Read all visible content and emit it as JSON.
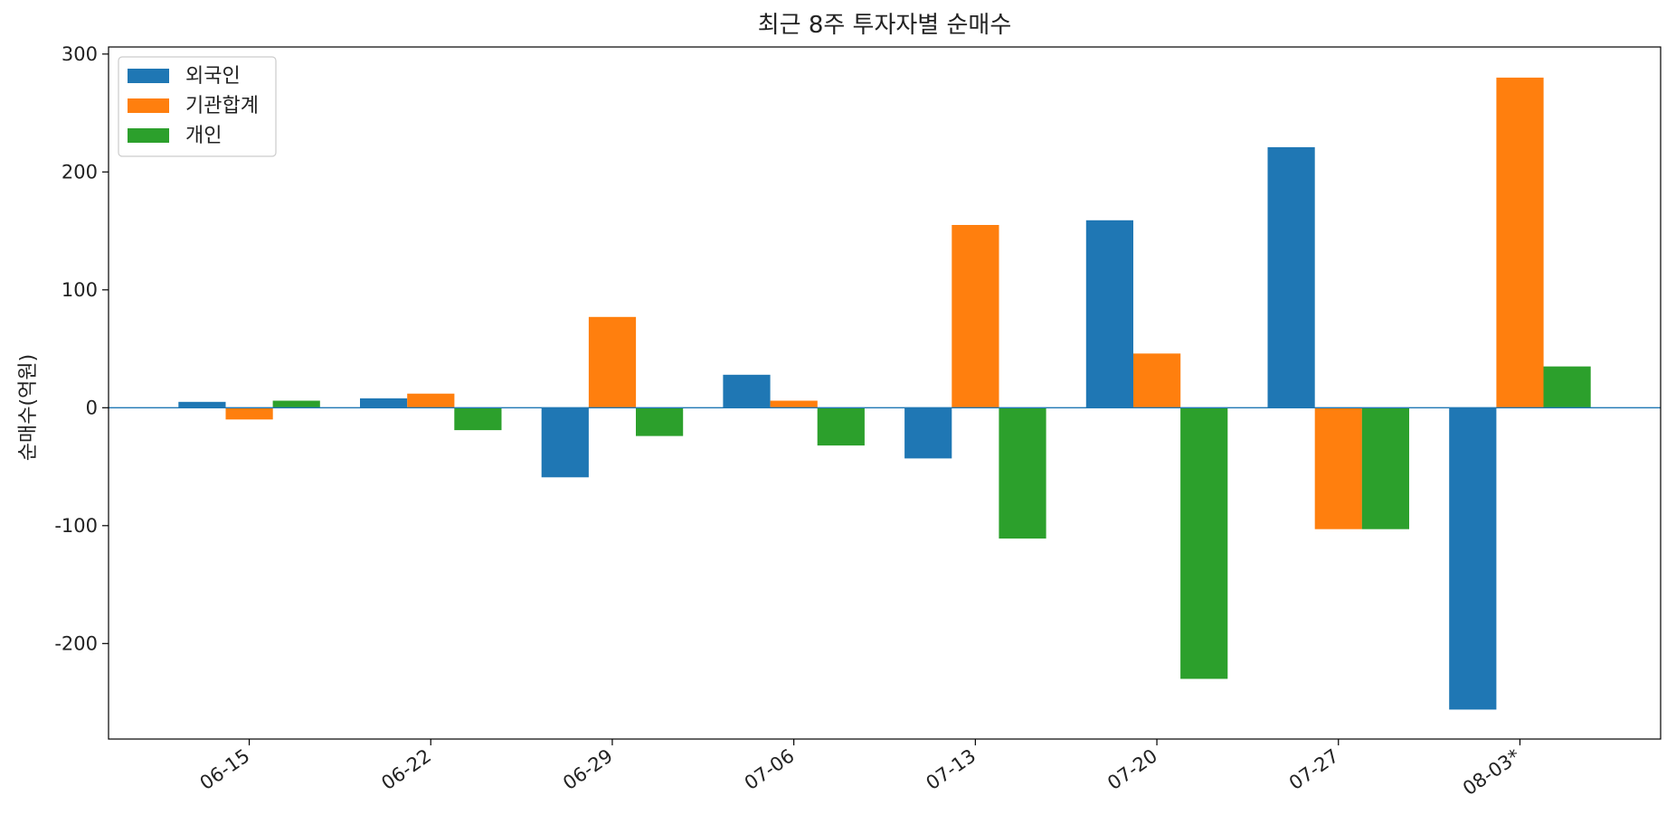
{
  "chart_data": {
    "type": "bar",
    "title": "최근 8주 투자자별 순매수",
    "xlabel": "",
    "ylabel": "순매수(억원)",
    "categories": [
      "06-15",
      "06-22",
      "06-29",
      "07-06",
      "07-13",
      "07-20",
      "07-27",
      "08-03*"
    ],
    "series": [
      {
        "name": "외국인",
        "color": "#1f77b4",
        "values": [
          5,
          8,
          -59,
          28,
          -43,
          159,
          221,
          -256
        ]
      },
      {
        "name": "기관합계",
        "color": "#ff7f0e",
        "values": [
          -10,
          12,
          77,
          6,
          155,
          46,
          -103,
          280
        ]
      },
      {
        "name": "개인",
        "color": "#2ca02c",
        "values": [
          6,
          -19,
          -24,
          -32,
          -111,
          -230,
          -103,
          35
        ]
      }
    ],
    "ylim": [
      -281,
      306
    ],
    "yticks": [
      -200,
      -100,
      0,
      100,
      200,
      300
    ],
    "ytick_labels": [
      "-200",
      "-100",
      "0",
      "100",
      "200",
      "300"
    ],
    "zero_line_color": "#1f77b4",
    "legend_position": "upper-left",
    "grid": false
  }
}
